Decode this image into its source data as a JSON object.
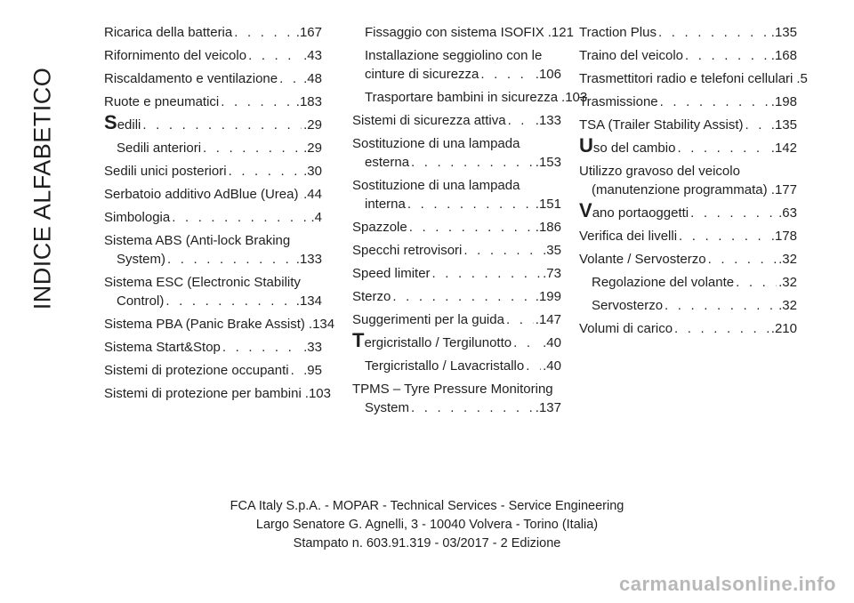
{
  "side_title": "INDICE ALFABETICO",
  "columns": [
    [
      {
        "lines": [
          "Ricarica della batteria"
        ],
        "page": ".167"
      },
      {
        "lines": [
          "Rifornimento del veicolo"
        ],
        "page": ".43"
      },
      {
        "lines": [
          "Riscaldamento e ventilazione"
        ],
        "page": ".48"
      },
      {
        "lines": [
          "Ruote e pneumatici"
        ],
        "page": ".183"
      },
      {
        "lines": [
          "Sedili"
        ],
        "page": ".29",
        "initial": true
      },
      {
        "lines": [
          "Sedili anteriori"
        ],
        "page": ".29",
        "sub": true
      },
      {
        "lines": [
          "Sedili unici posteriori"
        ],
        "page": ".30"
      },
      {
        "lines": [
          "Serbatoio additivo AdBlue (Urea)"
        ],
        "page": ".44"
      },
      {
        "lines": [
          "Simbologia"
        ],
        "page": ".4"
      },
      {
        "lines": [
          "Sistema ABS (Anti-lock Braking",
          "System)"
        ],
        "page": ".133"
      },
      {
        "lines": [
          "Sistema ESC (Electronic Stability",
          "Control)"
        ],
        "page": ".134"
      },
      {
        "lines": [
          "Sistema PBA (Panic Brake Assist)"
        ],
        "page": ".134"
      },
      {
        "lines": [
          "Sistema Start&Stop"
        ],
        "page": ".33"
      },
      {
        "lines": [
          "Sistemi di protezione occupanti"
        ],
        "page": ".95"
      },
      {
        "lines": [
          "Sistemi di protezione per bambini"
        ],
        "page": ".103"
      }
    ],
    [
      {
        "lines": [
          "Fissaggio con sistema ISOFIX"
        ],
        "page": ".121",
        "sub": true
      },
      {
        "lines": [
          "Installazione seggiolino con le",
          "cinture di sicurezza"
        ],
        "page": ".106",
        "sub": true
      },
      {
        "lines": [
          "Trasportare bambini in sicurezza"
        ],
        "page": ".103",
        "sub": true
      },
      {
        "lines": [
          "Sistemi di sicurezza attiva"
        ],
        "page": ".133"
      },
      {
        "lines": [
          "Sostituzione di una lampada",
          "esterna"
        ],
        "page": ".153"
      },
      {
        "lines": [
          "Sostituzione di una lampada",
          "interna"
        ],
        "page": ".151"
      },
      {
        "lines": [
          "Spazzole"
        ],
        "page": ".186"
      },
      {
        "lines": [
          "Specchi retrovisori"
        ],
        "page": ".35"
      },
      {
        "lines": [
          "Speed limiter"
        ],
        "page": ".73"
      },
      {
        "lines": [
          "Sterzo"
        ],
        "page": ".199"
      },
      {
        "lines": [
          "Suggerimenti per la guida"
        ],
        "page": ".147"
      },
      {
        "lines": [
          "Tergicristallo / Tergilunotto"
        ],
        "page": ".40",
        "initial": true
      },
      {
        "lines": [
          "Tergicristallo / Lavacristallo"
        ],
        "page": ".40",
        "sub": true
      },
      {
        "lines": [
          "TPMS – Tyre Pressure Monitoring",
          "System"
        ],
        "page": ".137"
      }
    ],
    [
      {
        "lines": [
          "Traction Plus"
        ],
        "page": ".135"
      },
      {
        "lines": [
          "Traino del veicolo"
        ],
        "page": ".168"
      },
      {
        "lines": [
          "Trasmettitori radio e telefoni cellulari"
        ],
        "page": ".5"
      },
      {
        "lines": [
          "Trasmissione"
        ],
        "page": ".198"
      },
      {
        "lines": [
          "TSA (Trailer Stability Assist)"
        ],
        "page": ".135"
      },
      {
        "lines": [
          "Uso del cambio"
        ],
        "page": ".142",
        "initial": true
      },
      {
        "lines": [
          "Utilizzo gravoso del veicolo",
          "(manutenzione programmata)"
        ],
        "page": ".177"
      },
      {
        "lines": [
          "Vano portaoggetti"
        ],
        "page": ".63",
        "initial": true
      },
      {
        "lines": [
          "Verifica dei livelli"
        ],
        "page": ".178"
      },
      {
        "lines": [
          "Volante / Servosterzo"
        ],
        "page": ".32"
      },
      {
        "lines": [
          "Regolazione del volante"
        ],
        "page": ".32",
        "sub": true
      },
      {
        "lines": [
          "Servosterzo"
        ],
        "page": ".32",
        "sub": true
      },
      {
        "lines": [
          "Volumi di carico"
        ],
        "page": ".210"
      }
    ]
  ],
  "footer": {
    "line1": "FCA Italy S.p.A. - MOPAR - Technical Services - Service Engineering",
    "line2": "Largo Senatore G. Agnelli, 3 - 10040 Volvera - Torino (Italia)",
    "line3": "Stampato n. 603.91.319 - 03/2017 - 2 Edizione"
  },
  "watermark": "carmanualsonline.info"
}
